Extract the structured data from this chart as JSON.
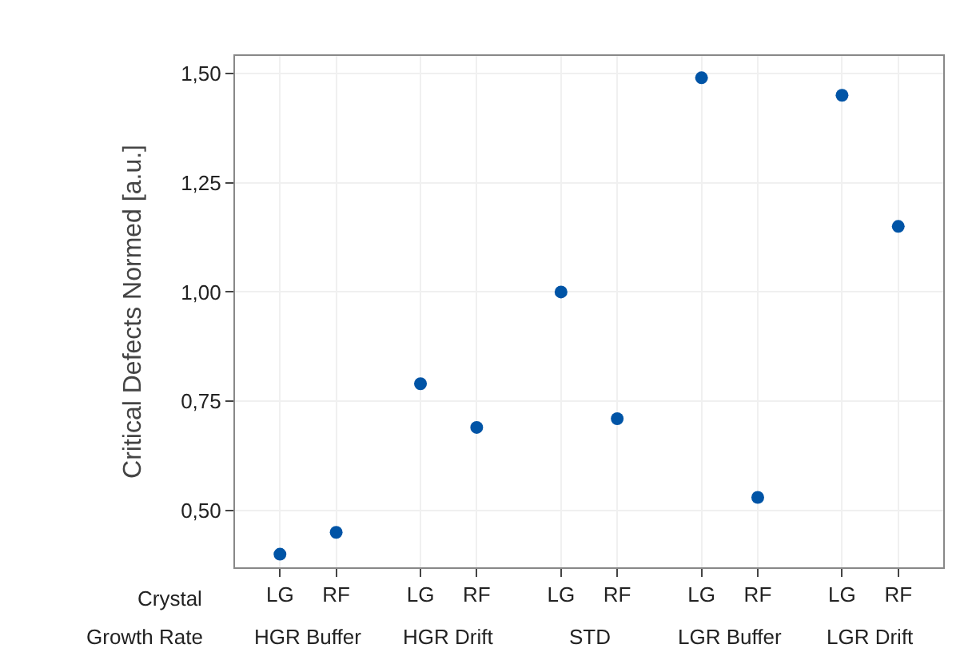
{
  "chart_data": {
    "type": "scatter",
    "ylabel": "Critical Defects Normed [a.u.]",
    "categories": [
      "LG",
      "RF",
      "LG",
      "RF",
      "LG",
      "RF",
      "LG",
      "RF",
      "LG",
      "RF"
    ],
    "series": [
      {
        "color": "#0054a6",
        "values": [
          0.4,
          0.45,
          0.79,
          0.69,
          1.0,
          0.71,
          1.49,
          0.53,
          1.45,
          1.15
        ]
      }
    ],
    "ylim": [
      0.37,
      1.54
    ],
    "yticks": [
      {
        "value": 0.5,
        "label": "0,50"
      },
      {
        "value": 0.75,
        "label": "0,75"
      },
      {
        "value": 1.0,
        "label": "1,00"
      },
      {
        "value": 1.25,
        "label": "1,25"
      },
      {
        "value": 1.5,
        "label": "1,50"
      }
    ],
    "annotations": [
      "Crystal",
      "Growth Rate",
      "HGR Buffer",
      "HGR Drift",
      "STD",
      "LGR Buffer",
      "LGR Drift"
    ],
    "grid": true,
    "marker": "circle"
  }
}
